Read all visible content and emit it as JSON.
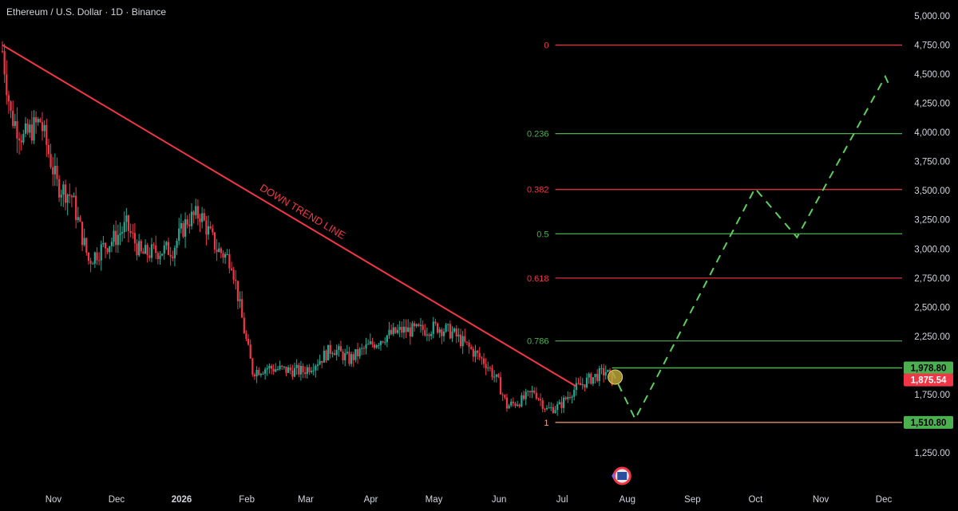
{
  "header": {
    "title": "Ethereum / U.S. Dollar · 1D · Binance"
  },
  "colors": {
    "background": "#000000",
    "up": "#22ab94",
    "down": "#f23645",
    "fib_red": "#f23645",
    "fib_green": "#4caf50",
    "trendline": "#f23645",
    "projection": "#5ccf5c",
    "tag_green": "#4caf50",
    "tag_red": "#f23645"
  },
  "chart_data": {
    "type": "candlestick",
    "symbol": "Ethereum / U.S. Dollar",
    "interval": "1D",
    "exchange": "Binance",
    "y_axis": {
      "range": [
        1200,
        5050
      ],
      "ticks": [
        "5,000.00",
        "4,750.00",
        "4,500.00",
        "4,250.00",
        "4,000.00",
        "3,750.00",
        "3,500.00",
        "3,250.00",
        "3,000.00",
        "2,750.00",
        "2,500.00",
        "2,250.00",
        "1,750.00",
        "1,250.00"
      ],
      "tick_values": [
        5000,
        4750,
        4500,
        4250,
        4000,
        3750,
        3500,
        3250,
        3000,
        2750,
        2500,
        2250,
        1750,
        1250
      ]
    },
    "x_axis": {
      "ticks": [
        "Nov",
        "Dec",
        "2026",
        "Feb",
        "Mar",
        "Apr",
        "May",
        "Jun",
        "Jul",
        "Aug",
        "Sep",
        "Oct",
        "Nov",
        "Dec"
      ],
      "tick_dates": [
        "2025-11-01",
        "2025-12-01",
        "2026-01-01",
        "2026-02-01",
        "2026-03-01",
        "2026-04-01",
        "2026-05-01",
        "2026-06-01",
        "2026-07-01",
        "2026-08-01",
        "2026-09-01",
        "2026-10-01",
        "2026-11-01",
        "2026-12-01"
      ],
      "range": [
        "2025-10-10",
        "2026-12-12"
      ]
    },
    "price_path": [
      {
        "date": "2025-10-10",
        "price": 4700
      },
      {
        "date": "2025-10-14",
        "price": 4150
      },
      {
        "date": "2025-10-20",
        "price": 3950
      },
      {
        "date": "2025-10-28",
        "price": 4100
      },
      {
        "date": "2025-11-05",
        "price": 3550
      },
      {
        "date": "2025-11-12",
        "price": 3450
      },
      {
        "date": "2025-11-20",
        "price": 2900
      },
      {
        "date": "2025-11-26",
        "price": 3000
      },
      {
        "date": "2025-12-03",
        "price": 3100
      },
      {
        "date": "2025-12-08",
        "price": 3200
      },
      {
        "date": "2025-12-15",
        "price": 2950
      },
      {
        "date": "2025-12-22",
        "price": 2980
      },
      {
        "date": "2025-12-30",
        "price": 3000
      },
      {
        "date": "2026-01-06",
        "price": 3250
      },
      {
        "date": "2026-01-12",
        "price": 3300
      },
      {
        "date": "2026-01-20",
        "price": 3000
      },
      {
        "date": "2026-01-27",
        "price": 2900
      },
      {
        "date": "2026-02-02",
        "price": 2300
      },
      {
        "date": "2026-02-06",
        "price": 1950
      },
      {
        "date": "2026-02-13",
        "price": 1980
      },
      {
        "date": "2026-02-22",
        "price": 1960
      },
      {
        "date": "2026-03-02",
        "price": 1950
      },
      {
        "date": "2026-03-10",
        "price": 2050
      },
      {
        "date": "2026-03-16",
        "price": 2150
      },
      {
        "date": "2026-03-24",
        "price": 2050
      },
      {
        "date": "2026-04-01",
        "price": 2150
      },
      {
        "date": "2026-04-10",
        "price": 2250
      },
      {
        "date": "2026-04-18",
        "price": 2300
      },
      {
        "date": "2026-04-26",
        "price": 2300
      },
      {
        "date": "2026-05-05",
        "price": 2330
      },
      {
        "date": "2026-05-12",
        "price": 2280
      },
      {
        "date": "2026-05-20",
        "price": 2150
      },
      {
        "date": "2026-05-28",
        "price": 2020
      },
      {
        "date": "2026-06-03",
        "price": 1850
      },
      {
        "date": "2026-06-07",
        "price": 1650
      },
      {
        "date": "2026-06-14",
        "price": 1700
      },
      {
        "date": "2026-06-20",
        "price": 1780
      },
      {
        "date": "2026-06-26",
        "price": 1620
      },
      {
        "date": "2026-07-02",
        "price": 1650
      },
      {
        "date": "2026-07-08",
        "price": 1780
      },
      {
        "date": "2026-07-16",
        "price": 1880
      },
      {
        "date": "2026-07-24",
        "price": 1950
      },
      {
        "date": "2026-07-27",
        "price": 1875
      }
    ],
    "annotations": {
      "trendline_text": "DOWN TREND LINE",
      "trendline": [
        {
          "date": "2025-10-10",
          "price": 4750
        },
        {
          "date": "2026-07-10",
          "price": 1820
        }
      ],
      "projection_path": [
        {
          "date": "2026-07-27",
          "price": 1950
        },
        {
          "date": "2026-08-07",
          "price": 1540
        },
        {
          "date": "2026-10-03",
          "price": 3520
        },
        {
          "date": "2026-10-23",
          "price": 3100
        },
        {
          "date": "2026-12-04",
          "price": 4480
        },
        {
          "date": "2026-12-06",
          "price": 4400
        }
      ],
      "fib_levels": [
        {
          "label": "0",
          "value": 4750,
          "color": "red"
        },
        {
          "label": "0.236",
          "value": 3990,
          "color": "green"
        },
        {
          "label": "0.382",
          "value": 3510,
          "color": "red"
        },
        {
          "label": "0.5",
          "value": 3130,
          "color": "green"
        },
        {
          "label": "0.618",
          "value": 2750,
          "color": "red"
        },
        {
          "label": "0.786",
          "value": 2210,
          "color": "green"
        },
        {
          "label": "1",
          "value": 1510.8,
          "color": "orange"
        }
      ],
      "fib_start_date": "2026-06-30",
      "range_top": {
        "value": 1978.8,
        "start_date": "2026-07-27"
      },
      "price_tags": [
        {
          "label": "1,978.80",
          "value": 1978.8,
          "color": "green"
        },
        {
          "label": "1,875.54",
          "value": 1875.54,
          "color": "red"
        },
        {
          "label": "1,510.80",
          "value": 1510.8,
          "color": "green"
        }
      ],
      "marker_date": "2026-07-28"
    }
  }
}
